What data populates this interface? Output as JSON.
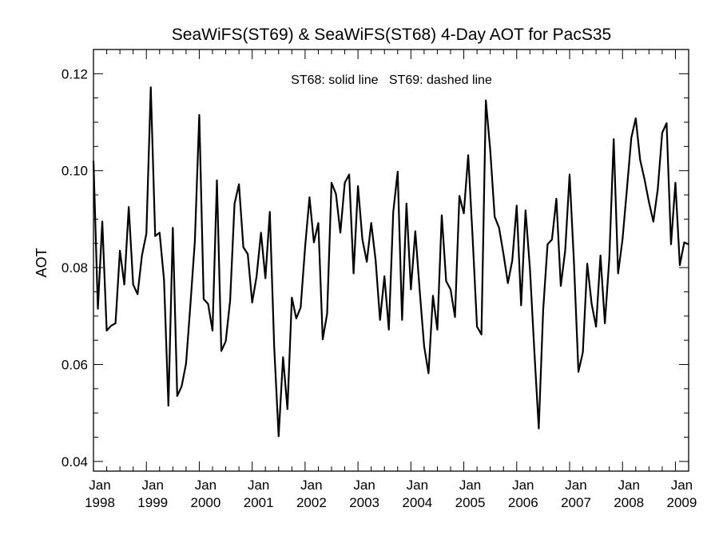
{
  "chart_data": {
    "type": "line",
    "title": "SeaWiFS(ST69) & SeaWiFS(ST68) 4-Day AOT for PacS35",
    "annotation": "ST68: solid line   ST69: dashed line",
    "xlabel": "",
    "ylabel": "AOT",
    "xlim": [
      "1998-01",
      "2009-04"
    ],
    "ylim": [
      0.038,
      0.125
    ],
    "grid": false,
    "y_ticks": [
      "0.04",
      "0.06",
      "0.08",
      "0.10",
      "0.12"
    ],
    "x_tick_labels": [
      {
        "month": "Jan",
        "year": "1998"
      },
      {
        "month": "Jan",
        "year": "1999"
      },
      {
        "month": "Jan",
        "year": "2000"
      },
      {
        "month": "Jan",
        "year": "2001"
      },
      {
        "month": "Jan",
        "year": "2002"
      },
      {
        "month": "Jan",
        "year": "2003"
      },
      {
        "month": "Jan",
        "year": "2004"
      },
      {
        "month": "Jan",
        "year": "2005"
      },
      {
        "month": "Jan",
        "year": "2006"
      },
      {
        "month": "Jan",
        "year": "2007"
      },
      {
        "month": "Jan",
        "year": "2008"
      },
      {
        "month": "Jan",
        "year": "2009"
      }
    ],
    "series": [
      {
        "line_style": "solid",
        "color": "#000000",
        "x": [
          "1998-01",
          "1998-02",
          "1998-03",
          "1998-04",
          "1998-05",
          "1998-06",
          "1998-07",
          "1998-08",
          "1998-09",
          "1998-10",
          "1998-11",
          "1998-12",
          "1999-01",
          "1999-02",
          "1999-03",
          "1999-04",
          "1999-05",
          "1999-06",
          "1999-07",
          "1999-08",
          "1999-09",
          "1999-10",
          "1999-11",
          "1999-12",
          "2000-01",
          "2000-02",
          "2000-03",
          "2000-04",
          "2000-05",
          "2000-06",
          "2000-07",
          "2000-08",
          "2000-09",
          "2000-10",
          "2000-11",
          "2000-12",
          "2001-01",
          "2001-02",
          "2001-03",
          "2001-04",
          "2001-05",
          "2001-06",
          "2001-07",
          "2001-08",
          "2001-09",
          "2001-10",
          "2001-11",
          "2001-12",
          "2002-01",
          "2002-02",
          "2002-03",
          "2002-04",
          "2002-05",
          "2002-06",
          "2002-07",
          "2002-08",
          "2002-09",
          "2002-10",
          "2002-11",
          "2002-12",
          "2003-01",
          "2003-02",
          "2003-03",
          "2003-04",
          "2003-05",
          "2003-06",
          "2003-07",
          "2003-08",
          "2003-09",
          "2003-10",
          "2003-11",
          "2003-12",
          "2004-01",
          "2004-02",
          "2004-03",
          "2004-04",
          "2004-05",
          "2004-06",
          "2004-07",
          "2004-08",
          "2004-09",
          "2004-10",
          "2004-11",
          "2004-12",
          "2005-01",
          "2005-02",
          "2005-03",
          "2005-04",
          "2005-05",
          "2005-06",
          "2005-07",
          "2005-08",
          "2005-09",
          "2005-10",
          "2005-11",
          "2005-12",
          "2006-01",
          "2006-02",
          "2006-03",
          "2006-04",
          "2006-05",
          "2006-06",
          "2006-07",
          "2006-08",
          "2006-09",
          "2006-10",
          "2006-11",
          "2006-12",
          "2007-01",
          "2007-02",
          "2007-03",
          "2007-04",
          "2007-05",
          "2007-06",
          "2007-07",
          "2007-08",
          "2007-09",
          "2007-10",
          "2007-11",
          "2007-12",
          "2008-01",
          "2008-02",
          "2008-03",
          "2008-04",
          "2008-05",
          "2008-06",
          "2008-07",
          "2008-08",
          "2008-09",
          "2008-10",
          "2008-11",
          "2008-12",
          "2009-01",
          "2009-02",
          "2009-03",
          "2009-04"
        ],
        "values": [
          0.102,
          0.0715,
          0.0895,
          0.067,
          0.068,
          0.0685,
          0.0835,
          0.0765,
          0.0925,
          0.0765,
          0.0745,
          0.0825,
          0.087,
          0.1172,
          0.0865,
          0.0872,
          0.0775,
          0.0515,
          0.0882,
          0.0535,
          0.0555,
          0.0602,
          0.0725,
          0.0855,
          0.1115,
          0.0735,
          0.0725,
          0.067,
          0.098,
          0.0628,
          0.0648,
          0.0732,
          0.0932,
          0.0972,
          0.0842,
          0.0828,
          0.0728,
          0.0782,
          0.0872,
          0.0778,
          0.0915,
          0.0635,
          0.0452,
          0.0615,
          0.0508,
          0.0738,
          0.0695,
          0.0718,
          0.0842,
          0.0945,
          0.0852,
          0.0892,
          0.0652,
          0.0705,
          0.0975,
          0.0952,
          0.0872,
          0.0975,
          0.0992,
          0.0788,
          0.0968,
          0.0858,
          0.0812,
          0.0892,
          0.0815,
          0.0692,
          0.0782,
          0.0672,
          0.0915,
          0.0998,
          0.0692,
          0.0932,
          0.0755,
          0.0875,
          0.0752,
          0.0638,
          0.0582,
          0.0742,
          0.0672,
          0.0908,
          0.0772,
          0.0755,
          0.0698,
          0.0948,
          0.0912,
          0.1032,
          0.0862,
          0.0678,
          0.0662,
          0.1145,
          0.1042,
          0.0905,
          0.0882,
          0.0828,
          0.0768,
          0.0815,
          0.0928,
          0.0722,
          0.0918,
          0.0798,
          0.0628,
          0.0468,
          0.0712,
          0.0848,
          0.0858,
          0.0942,
          0.0762,
          0.0835,
          0.0992,
          0.0808,
          0.0585,
          0.0625,
          0.0808,
          0.0725,
          0.0678,
          0.0825,
          0.0685,
          0.0818,
          0.1065,
          0.0788,
          0.0858,
          0.0962,
          0.1068,
          0.1108,
          0.1022,
          0.0982,
          0.0935,
          0.0895,
          0.0962,
          0.1078,
          0.1098,
          0.0848,
          0.0975,
          0.0805,
          0.0852,
          0.0848
        ]
      }
    ]
  }
}
